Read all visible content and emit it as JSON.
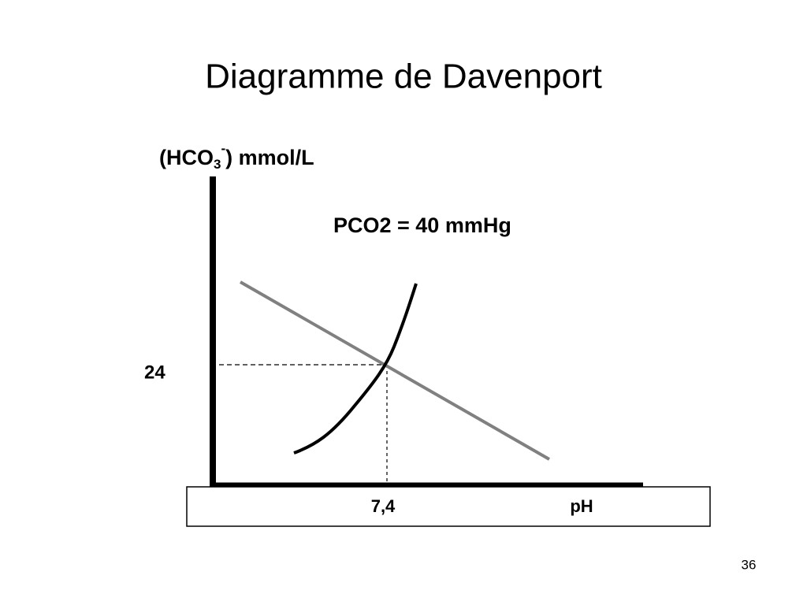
{
  "title": "Diagramme de Davenport",
  "y_label": {
    "main": "(HCO",
    "sub": "3",
    "sup": "-",
    "rest": ")  mmol/L"
  },
  "annotation": "PCO2 = 40 mmHg",
  "y_tick": "24",
  "x_tick": "7,4",
  "x_label": "pH",
  "page_number": "36"
}
